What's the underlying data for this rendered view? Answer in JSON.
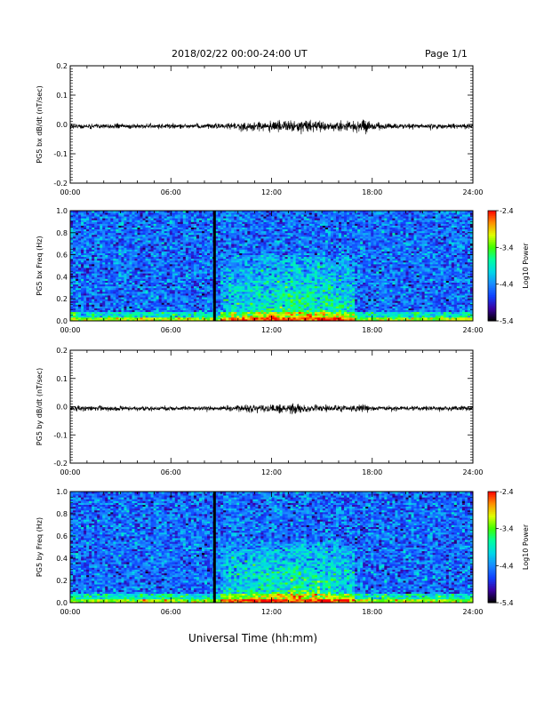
{
  "header": {
    "date_range": "2018/02/22  00:00-24:00 UT",
    "page": "Page 1/1"
  },
  "footer": {
    "xlabel": "Universal Time (hh:mm)"
  },
  "colors": {
    "trace": "#000000",
    "marker": "#000000",
    "colormap": [
      "#000000",
      "#3a00a0",
      "#1040ff",
      "#1a8cff",
      "#00d8e8",
      "#00ffa0",
      "#40ff00",
      "#e0ff00",
      "#ff9000",
      "#ff0000"
    ]
  },
  "chart_data": [
    {
      "type": "line",
      "ylabel": "PG5 bx dB/dt (nT/sec)",
      "xlim": [
        0,
        24
      ],
      "ylim": [
        -0.2,
        0.2
      ],
      "x_ticks": [
        "00:00",
        "06:00",
        "12:00",
        "18:00",
        "24:00"
      ],
      "y_ticks": [
        "0.2",
        "0.1",
        "0.0",
        "-0.1",
        "-0.2"
      ],
      "y_tick_values": [
        0.2,
        0.1,
        0.0,
        -0.1,
        -0.2
      ],
      "envelope": {
        "x_hours": [
          0,
          3,
          6,
          8,
          9,
          10,
          10.5,
          11,
          12,
          13,
          14,
          15,
          16,
          17,
          17.6,
          18,
          20,
          24
        ],
        "amplitude": [
          0.008,
          0.007,
          0.008,
          0.008,
          0.009,
          0.012,
          0.02,
          0.014,
          0.015,
          0.016,
          0.017,
          0.014,
          0.014,
          0.016,
          0.022,
          0.01,
          0.007,
          0.007
        ]
      }
    },
    {
      "type": "heatmap",
      "ylabel": "PG5 bx Freq (Hz)",
      "xlim": [
        0,
        24
      ],
      "ylim": [
        0.0,
        1.0
      ],
      "x_ticks": [
        "00:00",
        "06:00",
        "12:00",
        "18:00",
        "24:00"
      ],
      "y_ticks": [
        "1.0",
        "0.8",
        "0.6",
        "0.4",
        "0.2",
        "0.0"
      ],
      "y_tick_values": [
        1.0,
        0.8,
        0.6,
        0.4,
        0.2,
        0.0
      ],
      "data_gap_hour": 8.6,
      "colorbar": {
        "label": "Log10 Power",
        "range": [
          -5.4,
          -2.4
        ],
        "ticks": [
          "-2.4",
          "-3.4",
          "-4.4",
          "-5.4"
        ],
        "tick_values": [
          -2.4,
          -3.4,
          -4.4,
          -5.4
        ]
      },
      "activity": {
        "start_hour": 9,
        "end_hour": 17,
        "peak_hour": 13.5,
        "max_freq_hz": 0.55
      }
    },
    {
      "type": "line",
      "ylabel": "PG5 by dB/dt (nT/sec)",
      "xlim": [
        0,
        24
      ],
      "ylim": [
        -0.2,
        0.2
      ],
      "x_ticks": [
        "00:00",
        "06:00",
        "12:00",
        "18:00",
        "24:00"
      ],
      "y_ticks": [
        "0.2",
        "0.1",
        "0.0",
        "-0.1",
        "-0.2"
      ],
      "y_tick_values": [
        0.2,
        0.1,
        0.0,
        -0.1,
        -0.2
      ],
      "envelope": {
        "x_hours": [
          0,
          3,
          6,
          8,
          9,
          10,
          11,
          12,
          13,
          13.5,
          14,
          15,
          16,
          17,
          17.6,
          18,
          20,
          24
        ],
        "amplitude": [
          0.008,
          0.007,
          0.007,
          0.006,
          0.008,
          0.01,
          0.011,
          0.013,
          0.016,
          0.02,
          0.013,
          0.012,
          0.011,
          0.01,
          0.012,
          0.008,
          0.007,
          0.007
        ]
      }
    },
    {
      "type": "heatmap",
      "ylabel": "PG5 by Freq (Hz)",
      "xlim": [
        0,
        24
      ],
      "ylim": [
        0.0,
        1.0
      ],
      "x_ticks": [
        "00:00",
        "06:00",
        "12:00",
        "18:00",
        "24:00"
      ],
      "y_ticks": [
        "1.0",
        "0.8",
        "0.6",
        "0.4",
        "0.2",
        "0.0"
      ],
      "y_tick_values": [
        1.0,
        0.8,
        0.6,
        0.4,
        0.2,
        0.0
      ],
      "data_gap_hour": 8.6,
      "colorbar": {
        "label": "Log10 Power",
        "range": [
          -5.4,
          -2.4
        ],
        "ticks": [
          "-2.4",
          "-3.4",
          "-4.4",
          "-5.4"
        ],
        "tick_values": [
          -2.4,
          -3.4,
          -4.4,
          -5.4
        ]
      },
      "activity": {
        "start_hour": 9,
        "end_hour": 17,
        "peak_hour": 13.5,
        "max_freq_hz": 0.5
      }
    }
  ]
}
